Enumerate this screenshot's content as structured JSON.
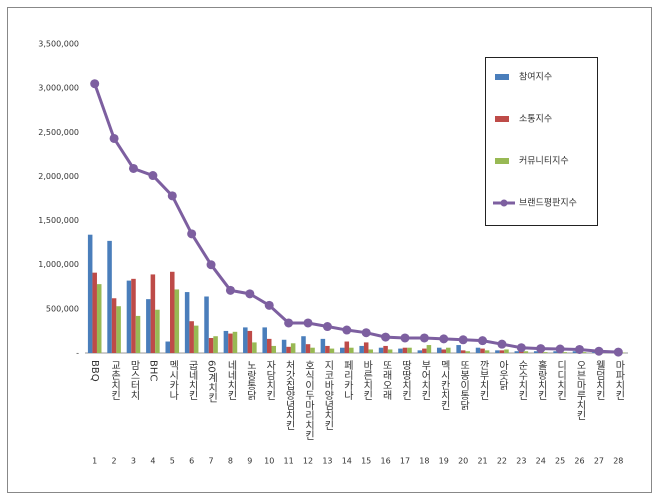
{
  "chart_data": {
    "type": "bar-line",
    "categories": [
      "BBQ",
      "교촌치킨",
      "맘스터치",
      "BHC",
      "멕시카나",
      "굽네치킨",
      "60계치킨",
      "네네치킨",
      "노랑통닭",
      "자담치킨",
      "처갓집양념치킨",
      "호식이두마리치킨",
      "지코바양념치킨",
      "페리카나",
      "바른치킨",
      "또래오래",
      "땅땅치킨",
      "부어치킨",
      "멕시칸치킨",
      "또봉이통닭",
      "깐부치킨",
      "아웃닭",
      "순수치킨",
      "홀랑치킨",
      "디디치킨",
      "오븐마루치킨",
      "웰덤치킨",
      "마파치킨"
    ],
    "ranks": [
      1,
      2,
      3,
      4,
      5,
      6,
      7,
      8,
      9,
      10,
      11,
      12,
      13,
      14,
      15,
      16,
      17,
      18,
      19,
      20,
      21,
      22,
      23,
      24,
      25,
      26,
      27,
      28
    ],
    "series": [
      {
        "name": "참여지수",
        "kind": "bar",
        "color": "#4a7ebb",
        "values": [
          1340000,
          1270000,
          820000,
          610000,
          130000,
          690000,
          640000,
          250000,
          290000,
          290000,
          150000,
          190000,
          160000,
          60000,
          80000,
          60000,
          50000,
          30000,
          60000,
          90000,
          60000,
          30000,
          20000,
          20000,
          20000,
          20000,
          10000,
          5000
        ]
      },
      {
        "name": "소통지수",
        "kind": "bar",
        "color": "#be4b48",
        "values": [
          910000,
          620000,
          840000,
          890000,
          920000,
          360000,
          170000,
          220000,
          250000,
          160000,
          70000,
          100000,
          80000,
          130000,
          120000,
          80000,
          60000,
          50000,
          40000,
          30000,
          50000,
          30000,
          20000,
          20000,
          10000,
          10000,
          5000,
          5000
        ]
      },
      {
        "name": "커뮤니티지수",
        "kind": "bar",
        "color": "#98b954",
        "values": [
          780000,
          530000,
          420000,
          490000,
          720000,
          310000,
          190000,
          240000,
          120000,
          80000,
          110000,
          60000,
          50000,
          60000,
          40000,
          40000,
          60000,
          90000,
          60000,
          20000,
          30000,
          40000,
          20000,
          10000,
          10000,
          10000,
          5000,
          5000
        ]
      },
      {
        "name": "브랜드평판지수",
        "kind": "line",
        "color": "#7d5fa0",
        "values": [
          3050000,
          2430000,
          2090000,
          2010000,
          1780000,
          1350000,
          1000000,
          710000,
          670000,
          540000,
          340000,
          340000,
          300000,
          260000,
          230000,
          180000,
          170000,
          170000,
          160000,
          150000,
          140000,
          100000,
          60000,
          50000,
          45000,
          40000,
          20000,
          10000
        ]
      }
    ],
    "ylim": [
      0,
      3500000
    ],
    "yticks": [
      {
        "value": 0,
        "label": "-"
      },
      {
        "value": 500000,
        "label": "500,000"
      },
      {
        "value": 1000000,
        "label": "1,000,000"
      },
      {
        "value": 1500000,
        "label": "1,500,000"
      },
      {
        "value": 2000000,
        "label": "2,000,000"
      },
      {
        "value": 2500000,
        "label": "2,500,000"
      },
      {
        "value": 3000000,
        "label": "3,000,000"
      },
      {
        "value": 3500000,
        "label": "3,500,000"
      }
    ],
    "legend": "top-right"
  }
}
